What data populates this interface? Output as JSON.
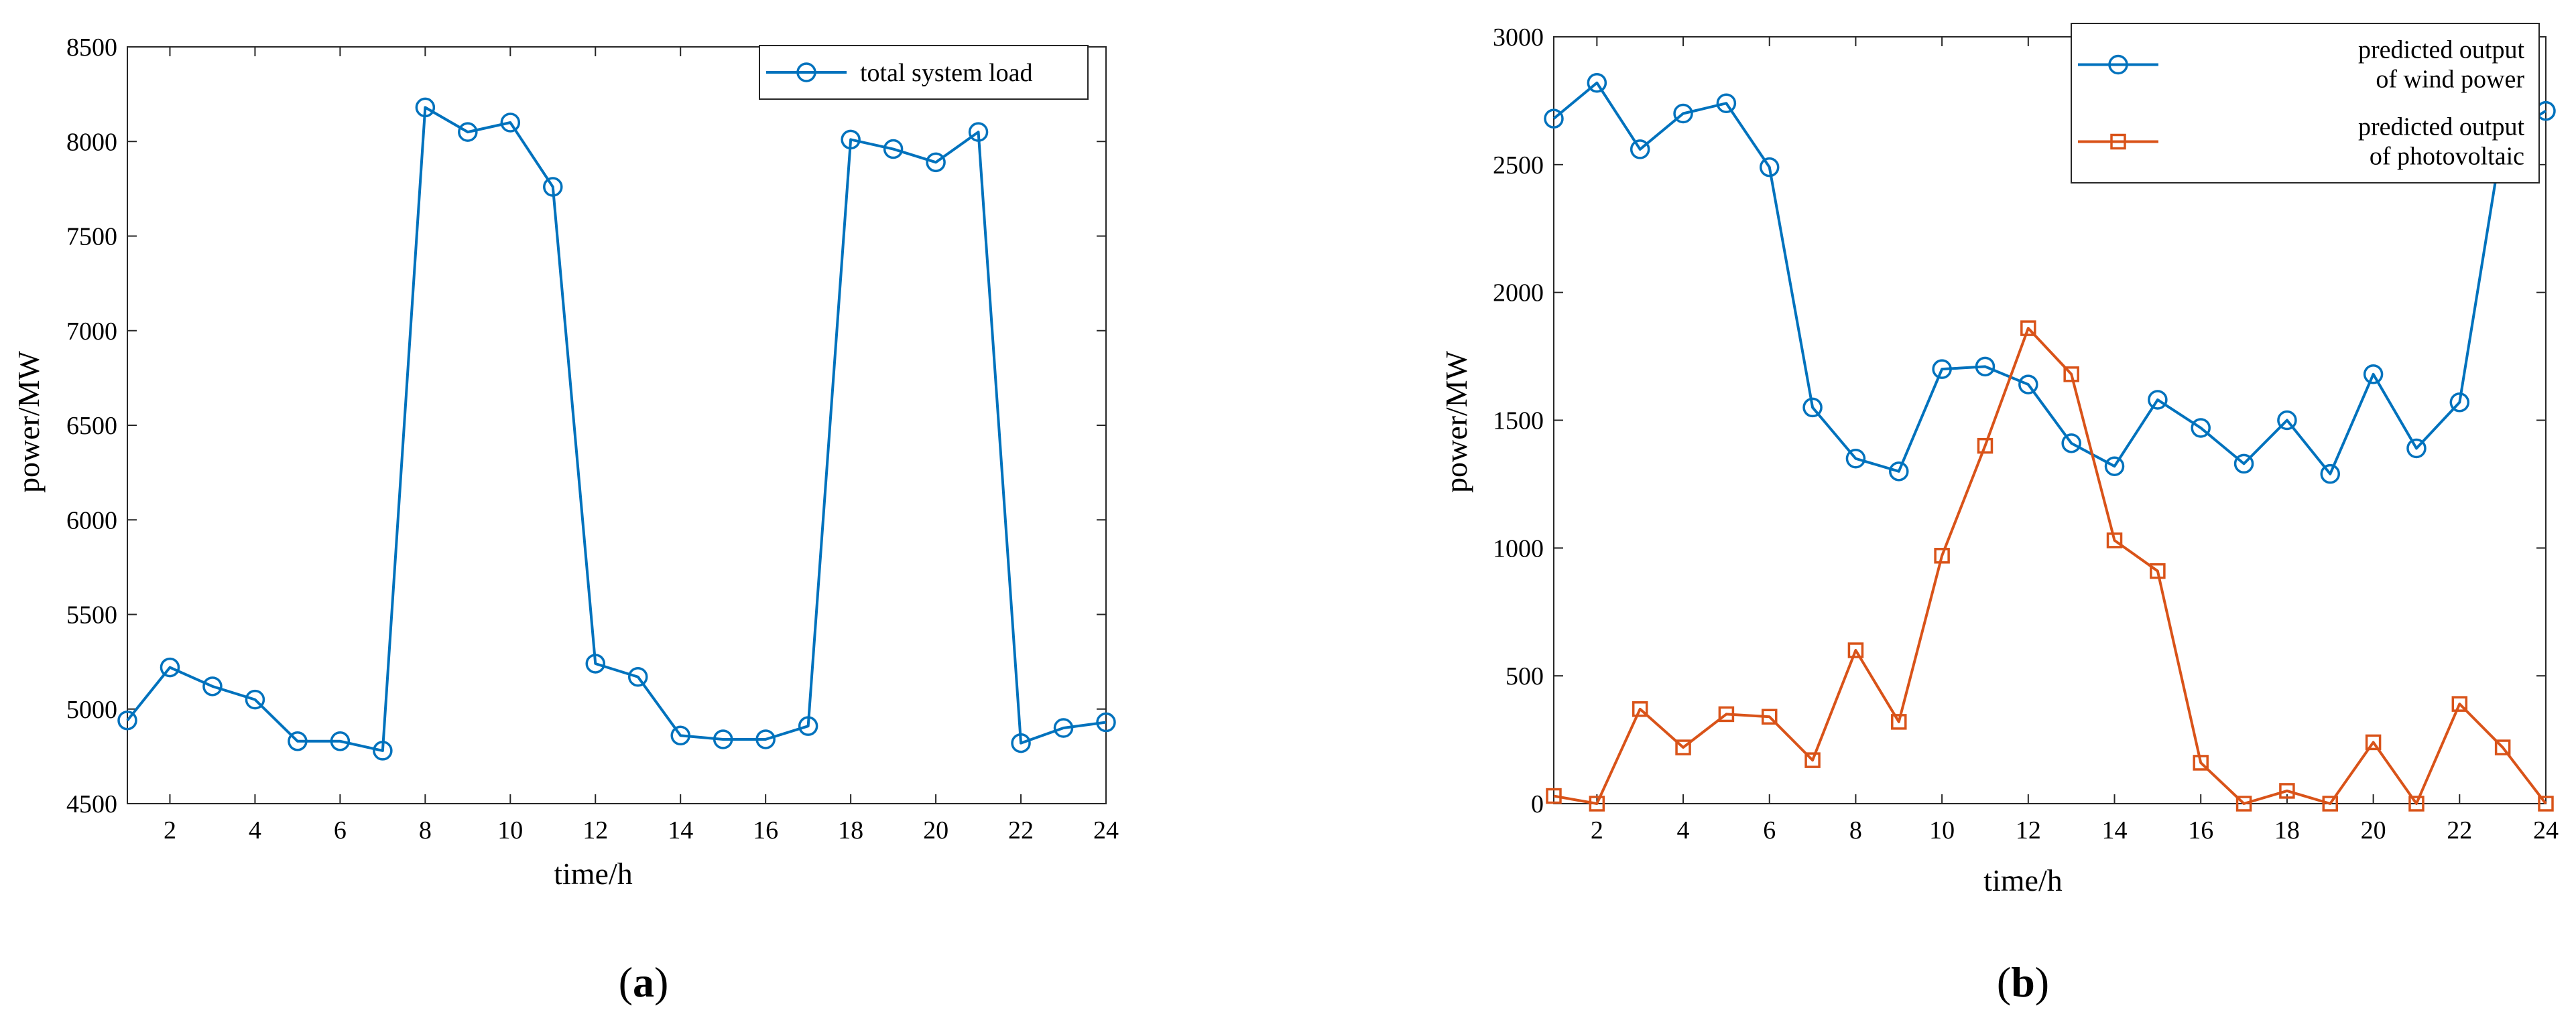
{
  "figure": {
    "panel_labels": [
      {
        "open": "(",
        "letter": "a",
        "close": ")"
      },
      {
        "open": "(",
        "letter": "b",
        "close": ")"
      }
    ]
  },
  "chart_data": [
    {
      "type": "line",
      "panel": "a",
      "title": "",
      "xlabel": "time/h",
      "ylabel": "power/MW",
      "xlim": [
        1,
        24
      ],
      "ylim": [
        4500,
        8500
      ],
      "xticks": [
        2,
        4,
        6,
        8,
        10,
        12,
        14,
        16,
        18,
        20,
        22,
        24
      ],
      "yticks": [
        4500,
        5000,
        5500,
        6000,
        6500,
        7000,
        7500,
        8000,
        8500
      ],
      "grid": false,
      "legend_position": "top-right",
      "x": [
        1,
        2,
        3,
        4,
        5,
        6,
        7,
        8,
        9,
        10,
        11,
        12,
        13,
        14,
        15,
        16,
        17,
        18,
        19,
        20,
        21,
        22,
        23,
        24
      ],
      "series": [
        {
          "name": "total system load",
          "marker": "circle",
          "color": "#0072BD",
          "values": [
            4940,
            5220,
            5120,
            5050,
            4830,
            4830,
            4780,
            8180,
            8050,
            8100,
            7760,
            5240,
            5170,
            4860,
            4840,
            4840,
            4910,
            8010,
            7960,
            7890,
            8050,
            4820,
            4900,
            4930
          ]
        }
      ]
    },
    {
      "type": "line",
      "panel": "b",
      "title": "",
      "xlabel": "time/h",
      "ylabel": "power/MW",
      "xlim": [
        1,
        24
      ],
      "ylim": [
        0,
        3000
      ],
      "xticks": [
        2,
        4,
        6,
        8,
        10,
        12,
        14,
        16,
        18,
        20,
        22,
        24
      ],
      "yticks": [
        0,
        500,
        1000,
        1500,
        2000,
        2500,
        3000
      ],
      "grid": false,
      "legend_position": "top-right",
      "x": [
        1,
        2,
        3,
        4,
        5,
        6,
        7,
        8,
        9,
        10,
        11,
        12,
        13,
        14,
        15,
        16,
        17,
        18,
        19,
        20,
        21,
        22,
        23,
        24
      ],
      "series": [
        {
          "name": "predicted output of wind power",
          "name_lines": [
            "predicted output",
            "of wind power"
          ],
          "marker": "circle",
          "color": "#0072BD",
          "values": [
            2680,
            2820,
            2560,
            2700,
            2740,
            2490,
            1550,
            1350,
            1300,
            1700,
            1710,
            1640,
            1410,
            1320,
            1580,
            1470,
            1330,
            1500,
            1290,
            1680,
            1390,
            1570,
            2610,
            2710
          ]
        },
        {
          "name": "predicted output of photovoltaic",
          "name_lines": [
            "predicted output",
            "of photovoltaic"
          ],
          "marker": "square",
          "color": "#D95319",
          "values": [
            30,
            0,
            370,
            220,
            350,
            340,
            170,
            600,
            320,
            970,
            1400,
            1860,
            1680,
            1030,
            910,
            160,
            0,
            50,
            0,
            240,
            0,
            390,
            220,
            0
          ]
        }
      ]
    }
  ]
}
